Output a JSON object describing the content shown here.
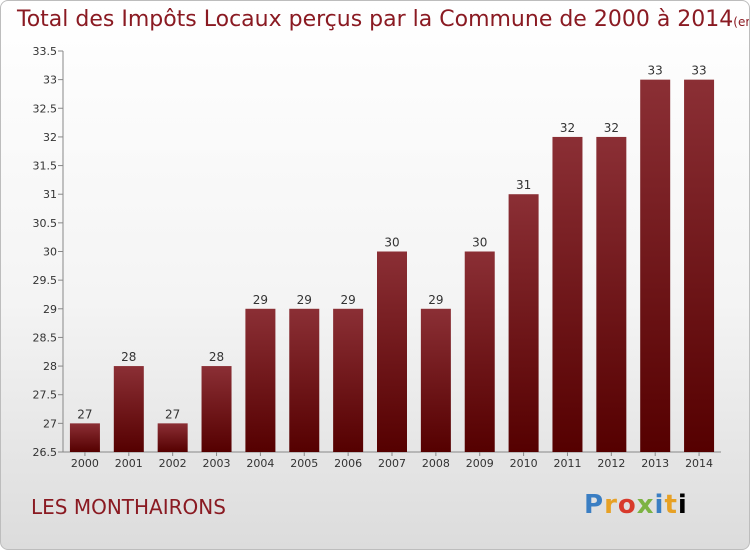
{
  "title": "Total des Impôts Locaux perçus par la Commune de 2000 à 2014",
  "subtitle": "(en milliers d'€)",
  "commune": "LES MONTHAIRONS",
  "logo": "Proxiti",
  "colors": {
    "bar_top": "#8b2f35",
    "bar_bottom": "#550000",
    "title": "#8a1a22"
  },
  "chart_data": {
    "type": "bar",
    "categories": [
      "2000",
      "2001",
      "2002",
      "2003",
      "2004",
      "2005",
      "2006",
      "2007",
      "2008",
      "2009",
      "2010",
      "2011",
      "2012",
      "2013",
      "2014"
    ],
    "values": [
      27,
      28,
      27,
      28,
      29,
      29,
      29,
      30,
      29,
      30,
      31,
      32,
      32,
      33,
      33
    ],
    "labels": [
      "27",
      "28",
      "27",
      "28",
      "29",
      "29",
      "29",
      "30",
      "29",
      "30",
      "31",
      "32",
      "32",
      "33",
      "33"
    ],
    "title": "Total des Impôts Locaux perçus par la Commune de 2000 à 2014",
    "xlabel": "",
    "ylabel": "",
    "ylim": [
      26.5,
      33.5
    ],
    "yticks": [
      "26.5",
      "27",
      "27.5",
      "28",
      "28.5",
      "29",
      "29.5",
      "30",
      "30.5",
      "31",
      "31.5",
      "32",
      "32.5",
      "33",
      "33.5"
    ],
    "grid": false,
    "legend": "none"
  }
}
